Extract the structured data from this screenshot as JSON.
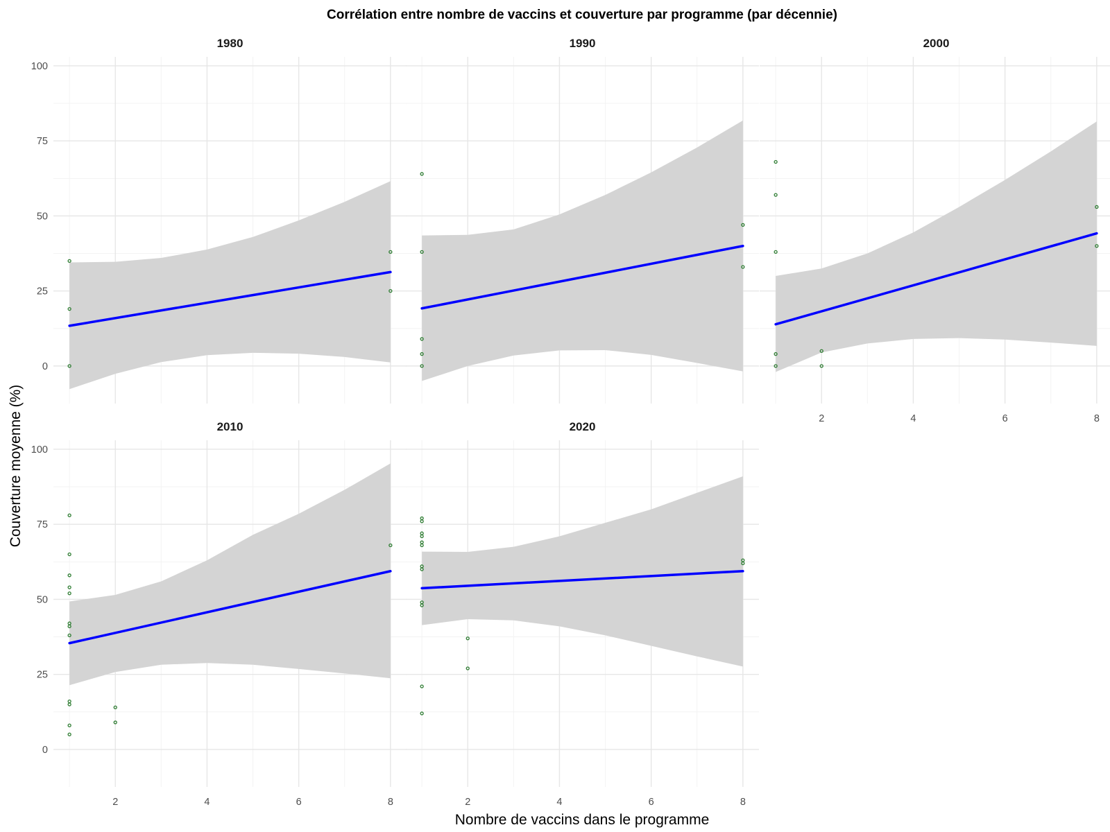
{
  "chart_data": {
    "type": "scatter",
    "title": "Corrélation entre nombre de vaccins et couverture par programme (par décennie)",
    "xlabel": "Nombre de vaccins dans le programme",
    "ylabel": "Couverture moyenne (%)",
    "xlim": [
      0.65,
      8.35
    ],
    "ylim": [
      -12.5,
      103
    ],
    "x_ticks": [
      2,
      4,
      6,
      8
    ],
    "y_ticks": [
      0,
      25,
      50,
      75,
      100
    ],
    "grid": true,
    "colors": {
      "points": "#2e7d32",
      "fit": "#0000ff",
      "ribbon": "#d4d4d4",
      "grid_major": "#e6e6e6",
      "grid_minor": "#f3f3f3"
    },
    "panels": [
      {
        "label": "1980",
        "points": [
          [
            1,
            35
          ],
          [
            1,
            19
          ],
          [
            1,
            0
          ],
          [
            8,
            38
          ],
          [
            8,
            25
          ]
        ],
        "fit": {
          "x": [
            1,
            8
          ],
          "y": [
            13.4,
            31.3
          ]
        },
        "ribbon_upper": [
          [
            1,
            34.5
          ],
          [
            2,
            34.7
          ],
          [
            3,
            36.0
          ],
          [
            4,
            38.8
          ],
          [
            5,
            43.0
          ],
          [
            6,
            48.5
          ],
          [
            7,
            54.7
          ],
          [
            8,
            61.6
          ]
        ],
        "ribbon_lower": [
          [
            1,
            -7.7
          ],
          [
            2,
            -2.6
          ],
          [
            3,
            1.3
          ],
          [
            4,
            3.6
          ],
          [
            5,
            4.4
          ],
          [
            6,
            4.1
          ],
          [
            7,
            3.0
          ],
          [
            8,
            1.2
          ]
        ]
      },
      {
        "label": "1990",
        "points": [
          [
            1,
            64
          ],
          [
            1,
            38
          ],
          [
            1,
            9
          ],
          [
            1,
            4
          ],
          [
            1,
            0
          ],
          [
            8,
            47
          ],
          [
            8,
            33
          ]
        ],
        "fit": {
          "x": [
            1,
            8
          ],
          "y": [
            19.2,
            40.0
          ]
        },
        "ribbon_upper": [
          [
            1,
            43.5
          ],
          [
            2,
            43.7
          ],
          [
            3,
            45.5
          ],
          [
            4,
            50.5
          ],
          [
            5,
            57.0
          ],
          [
            6,
            64.5
          ],
          [
            7,
            72.8
          ],
          [
            8,
            81.8
          ]
        ],
        "ribbon_lower": [
          [
            1,
            -5.0
          ],
          [
            2,
            0.0
          ],
          [
            3,
            3.5
          ],
          [
            4,
            5.2
          ],
          [
            5,
            5.3
          ],
          [
            6,
            3.7
          ],
          [
            7,
            1.0
          ],
          [
            8,
            -1.8
          ]
        ]
      },
      {
        "label": "2000",
        "points": [
          [
            1,
            68
          ],
          [
            1,
            57
          ],
          [
            1,
            38
          ],
          [
            1,
            4
          ],
          [
            1,
            0
          ],
          [
            2,
            5
          ],
          [
            2,
            0
          ],
          [
            8,
            53
          ],
          [
            8,
            40
          ]
        ],
        "fit": {
          "x": [
            1,
            8
          ],
          "y": [
            13.9,
            44.2
          ]
        },
        "ribbon_upper": [
          [
            1,
            30.0
          ],
          [
            2,
            32.5
          ],
          [
            3,
            37.5
          ],
          [
            4,
            44.5
          ],
          [
            5,
            53.0
          ],
          [
            6,
            62.0
          ],
          [
            7,
            71.5
          ],
          [
            8,
            81.5
          ]
        ],
        "ribbon_lower": [
          [
            1,
            -2.0
          ],
          [
            2,
            4.5
          ],
          [
            3,
            7.5
          ],
          [
            4,
            9.0
          ],
          [
            5,
            9.3
          ],
          [
            6,
            8.8
          ],
          [
            7,
            7.8
          ],
          [
            8,
            6.7
          ]
        ]
      },
      {
        "label": "2010",
        "points": [
          [
            1,
            78
          ],
          [
            1,
            65
          ],
          [
            1,
            58
          ],
          [
            1,
            54
          ],
          [
            1,
            52
          ],
          [
            1,
            42
          ],
          [
            1,
            41
          ],
          [
            1,
            38
          ],
          [
            1,
            16
          ],
          [
            1,
            15
          ],
          [
            1,
            8
          ],
          [
            1,
            5
          ],
          [
            2,
            14
          ],
          [
            2,
            9
          ],
          [
            8,
            68
          ]
        ],
        "fit": {
          "x": [
            1,
            8
          ],
          "y": [
            35.4,
            59.4
          ]
        },
        "ribbon_upper": [
          [
            1,
            49.3
          ],
          [
            2,
            51.5
          ],
          [
            3,
            56.0
          ],
          [
            4,
            63.0
          ],
          [
            5,
            71.5
          ],
          [
            6,
            78.5
          ],
          [
            7,
            86.5
          ],
          [
            8,
            95.3
          ]
        ],
        "ribbon_lower": [
          [
            1,
            21.4
          ],
          [
            2,
            25.8
          ],
          [
            3,
            28.2
          ],
          [
            4,
            28.8
          ],
          [
            5,
            28.2
          ],
          [
            6,
            26.8
          ],
          [
            7,
            25.3
          ],
          [
            8,
            23.7
          ]
        ]
      },
      {
        "label": "2020",
        "points": [
          [
            1,
            77
          ],
          [
            1,
            76
          ],
          [
            1,
            72
          ],
          [
            1,
            71
          ],
          [
            1,
            69
          ],
          [
            1,
            68
          ],
          [
            1,
            61
          ],
          [
            1,
            60
          ],
          [
            1,
            49
          ],
          [
            1,
            48
          ],
          [
            1,
            21
          ],
          [
            1,
            12
          ],
          [
            2,
            37
          ],
          [
            2,
            27
          ],
          [
            8,
            63
          ],
          [
            8,
            62
          ]
        ],
        "fit": {
          "x": [
            1,
            8
          ],
          "y": [
            53.7,
            59.4
          ]
        },
        "ribbon_upper": [
          [
            1,
            65.9
          ],
          [
            2,
            65.8
          ],
          [
            3,
            67.5
          ],
          [
            4,
            71.0
          ],
          [
            5,
            75.5
          ],
          [
            6,
            80.0
          ],
          [
            7,
            85.5
          ],
          [
            8,
            91.0
          ]
        ],
        "ribbon_lower": [
          [
            1,
            41.4
          ],
          [
            2,
            43.4
          ],
          [
            3,
            43.0
          ],
          [
            4,
            41.0
          ],
          [
            5,
            38.0
          ],
          [
            6,
            34.5
          ],
          [
            7,
            31.0
          ],
          [
            8,
            27.6
          ]
        ]
      }
    ]
  }
}
